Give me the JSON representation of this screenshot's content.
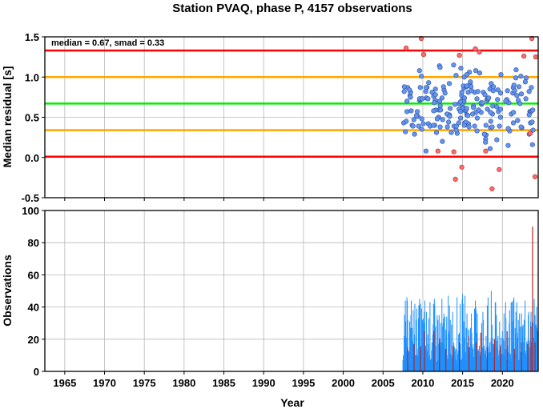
{
  "chart_data": [
    {
      "type": "scatter",
      "title": "Station PVAQ, phase P, 4157 observations",
      "ylabel": "Median residual [s]",
      "annotation": "median = 0.67, smad = 0.33",
      "xlim": [
        1962.5,
        2024.5
      ],
      "ylim": [
        -0.5,
        1.5
      ],
      "yticks": [
        "-0.5",
        "0.0",
        "0.5",
        "1.0",
        "1.5"
      ],
      "xticks": [
        1965,
        1970,
        1975,
        1980,
        1985,
        1990,
        1995,
        2000,
        2005,
        2010,
        2015,
        2020
      ],
      "grid": true,
      "reference_lines": [
        {
          "y": 1.33,
          "color": "#ff0000"
        },
        {
          "y": 1.0,
          "color": "#ffa500"
        },
        {
          "y": 0.67,
          "color": "#00ee00"
        },
        {
          "y": 0.34,
          "color": "#ffa500"
        },
        {
          "y": 0.01,
          "color": "#ff0000"
        }
      ],
      "point_colors": {
        "within": "#6495ed",
        "outlier": "#ff6a6a"
      },
      "points": [],
      "outliers": [
        {
          "x": 2007.9,
          "y": 1.36
        },
        {
          "x": 2009.8,
          "y": 1.48
        },
        {
          "x": 2010.1,
          "y": 1.28
        },
        {
          "x": 2011.9,
          "y": 0.08
        },
        {
          "x": 2013.9,
          "y": 0.07
        },
        {
          "x": 2014.1,
          "y": -0.27
        },
        {
          "x": 2014.6,
          "y": 1.27
        },
        {
          "x": 2014.9,
          "y": -0.12
        },
        {
          "x": 2016.6,
          "y": 1.35
        },
        {
          "x": 2017.1,
          "y": 1.31
        },
        {
          "x": 2017.9,
          "y": 0.08
        },
        {
          "x": 2018.7,
          "y": -0.39
        },
        {
          "x": 2019.6,
          "y": -0.15
        },
        {
          "x": 2022.7,
          "y": 1.26
        },
        {
          "x": 2023.5,
          "y": 0.3
        },
        {
          "x": 2023.7,
          "y": 1.48
        },
        {
          "x": 2024.1,
          "y": -0.24
        },
        {
          "x": 2024.2,
          "y": 1.25
        }
      ]
    },
    {
      "type": "bar",
      "ylabel": "Observations",
      "xlabel": "Year",
      "xlim": [
        1962.5,
        2024.5
      ],
      "ylim": [
        0,
        100
      ],
      "yticks": [
        "0",
        "20",
        "40",
        "60",
        "80",
        "100"
      ],
      "xticks": [
        "1965",
        "1970",
        "1975",
        "1980",
        "1985",
        "1990",
        "1995",
        "2000",
        "2005",
        "2010",
        "2015",
        "2020"
      ],
      "grid": true,
      "start_year": 2007.5,
      "colors": {
        "normal": "#1e90ff",
        "flagged": "#b22222"
      },
      "counts": [],
      "flagged": [
        {
          "x": 2008.1,
          "n": 15
        },
        {
          "x": 2008.9,
          "n": 17
        },
        {
          "x": 2009.7,
          "n": 15
        },
        {
          "x": 2010.2,
          "n": 25
        },
        {
          "x": 2011.4,
          "n": 25
        },
        {
          "x": 2012.1,
          "n": 20
        },
        {
          "x": 2012.9,
          "n": 14
        },
        {
          "x": 2013.8,
          "n": 16
        },
        {
          "x": 2014.6,
          "n": 18
        },
        {
          "x": 2015.8,
          "n": 22
        },
        {
          "x": 2016.7,
          "n": 18
        },
        {
          "x": 2017.3,
          "n": 24
        },
        {
          "x": 2018.1,
          "n": 15
        },
        {
          "x": 2019.0,
          "n": 20
        },
        {
          "x": 2019.8,
          "n": 16
        },
        {
          "x": 2020.6,
          "n": 25
        },
        {
          "x": 2021.5,
          "n": 14
        },
        {
          "x": 2022.4,
          "n": 18
        },
        {
          "x": 2023.2,
          "n": 17
        },
        {
          "x": 2023.6,
          "n": 28
        },
        {
          "x": 2023.8,
          "n": 90
        },
        {
          "x": 2024.1,
          "n": 18
        }
      ]
    }
  ]
}
